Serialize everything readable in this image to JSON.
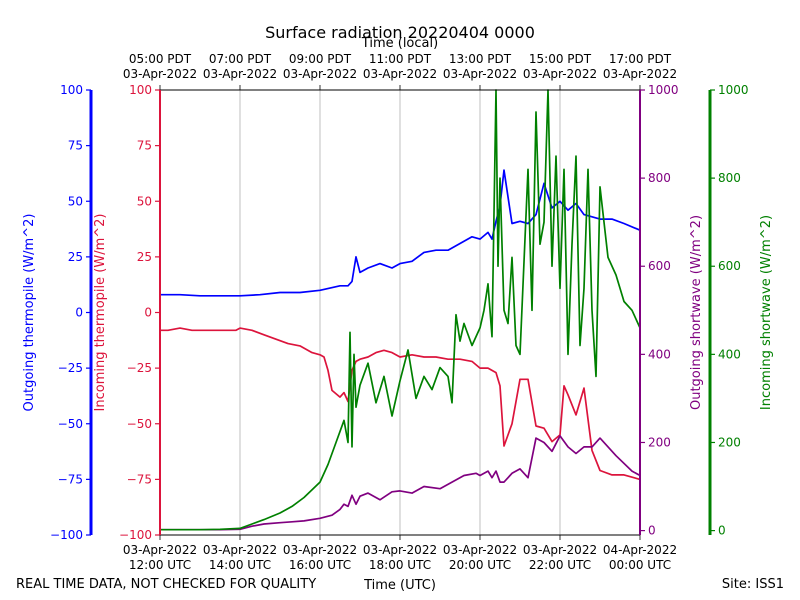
{
  "chart_data": {
    "type": "line",
    "title": "Surface radiation 20220404 0000",
    "top_axis_label": "Time (local)",
    "xlabel": "Time (UTC)",
    "footer_left": "REAL TIME DATA, NOT CHECKED FOR QUALITY",
    "footer_right": "Site: ISS1",
    "x_range_utc_hours": [
      12,
      24
    ],
    "grid": "vertical lines at bottom tick positions",
    "bottom_ticks": [
      {
        "hour": 12,
        "line1": "03-Apr-2022",
        "line2": "12:00 UTC"
      },
      {
        "hour": 14,
        "line1": "03-Apr-2022",
        "line2": "14:00 UTC"
      },
      {
        "hour": 16,
        "line1": "03-Apr-2022",
        "line2": "16:00 UTC"
      },
      {
        "hour": 18,
        "line1": "03-Apr-2022",
        "line2": "18:00 UTC"
      },
      {
        "hour": 20,
        "line1": "03-Apr-2022",
        "line2": "20:00 UTC"
      },
      {
        "hour": 22,
        "line1": "03-Apr-2022",
        "line2": "22:00 UTC"
      },
      {
        "hour": 24,
        "line1": "04-Apr-2022",
        "line2": "00:00 UTC"
      }
    ],
    "top_ticks": [
      {
        "hour": 12,
        "line1": "05:00 PDT",
        "line2": "03-Apr-2022"
      },
      {
        "hour": 14,
        "line1": "07:00 PDT",
        "line2": "03-Apr-2022"
      },
      {
        "hour": 16,
        "line1": "09:00 PDT",
        "line2": "03-Apr-2022"
      },
      {
        "hour": 18,
        "line1": "11:00 PDT",
        "line2": "03-Apr-2022"
      },
      {
        "hour": 20,
        "line1": "13:00 PDT",
        "line2": "03-Apr-2022"
      },
      {
        "hour": 22,
        "line1": "15:00 PDT",
        "line2": "03-Apr-2022"
      },
      {
        "hour": 24,
        "line1": "17:00 PDT",
        "line2": "03-Apr-2022"
      }
    ],
    "axes": [
      {
        "id": "outgoing_thermopile",
        "label": "Outgoing thermopile (W/m^2)",
        "color": "#0000ff",
        "side": "left-outer",
        "ylim": [
          -100,
          100
        ],
        "ticks": [
          -100,
          -75,
          -50,
          -25,
          0,
          25,
          50,
          75,
          100
        ]
      },
      {
        "id": "incoming_thermopile",
        "label": "Incoming thermopile (W/m^2)",
        "color": "#dc143c",
        "side": "left-inner",
        "ylim": [
          -100,
          100
        ],
        "ticks": [
          -100,
          -75,
          -50,
          -25,
          0,
          25,
          50,
          75,
          100
        ]
      },
      {
        "id": "outgoing_shortwave",
        "label": "Outgoing shortwave (W/m^2)",
        "color": "#800080",
        "side": "right-inner",
        "ylim": [
          -10,
          1000
        ],
        "ticks": [
          0,
          200,
          400,
          600,
          800,
          1000
        ]
      },
      {
        "id": "incoming_shortwave",
        "label": "Incoming shortwave (W/m^2)",
        "color": "#008000",
        "side": "right-outer",
        "ylim": [
          -10,
          1000
        ],
        "ticks": [
          0,
          200,
          400,
          600,
          800,
          1000
        ]
      }
    ],
    "series": [
      {
        "axis": "outgoing_thermopile",
        "color": "#0000ff",
        "x": [
          12.0,
          12.5,
          13.0,
          13.5,
          14.0,
          14.5,
          15.0,
          15.5,
          16.0,
          16.5,
          16.7,
          16.8,
          16.9,
          17.0,
          17.2,
          17.5,
          17.8,
          18.0,
          18.3,
          18.6,
          18.9,
          19.2,
          19.5,
          19.8,
          20.0,
          20.2,
          20.3,
          20.4,
          20.5,
          20.6,
          20.8,
          21.0,
          21.2,
          21.4,
          21.6,
          21.8,
          22.0,
          22.2,
          22.4,
          22.6,
          22.8,
          23.0,
          23.3,
          23.6,
          24.0
        ],
        "y": [
          8,
          8,
          7.5,
          7.5,
          7.5,
          8,
          9,
          9,
          10,
          12,
          12,
          14,
          25,
          18,
          20,
          22,
          20,
          22,
          23,
          27,
          28,
          28,
          31,
          34,
          33,
          36,
          33,
          41,
          48,
          64,
          40,
          41,
          40,
          44,
          58,
          47,
          50,
          46,
          49,
          44,
          43,
          42,
          42,
          40,
          37
        ]
      },
      {
        "axis": "incoming_thermopile",
        "color": "#dc143c",
        "x": [
          12.0,
          12.2,
          12.5,
          12.8,
          13.0,
          13.3,
          13.6,
          13.9,
          14.0,
          14.3,
          14.6,
          14.9,
          15.2,
          15.5,
          15.8,
          16.0,
          16.1,
          16.2,
          16.3,
          16.5,
          16.6,
          16.7,
          16.8,
          16.9,
          17.0,
          17.2,
          17.4,
          17.6,
          17.8,
          18.0,
          18.3,
          18.6,
          18.9,
          19.2,
          19.5,
          19.8,
          20.0,
          20.2,
          20.4,
          20.5,
          20.6,
          20.8,
          21.0,
          21.2,
          21.4,
          21.6,
          21.8,
          22.0,
          22.1,
          22.2,
          22.4,
          22.6,
          22.8,
          23.0,
          23.3,
          23.6,
          24.0
        ],
        "y": [
          -8,
          -8,
          -7,
          -8,
          -8,
          -8,
          -8,
          -8,
          -7,
          -8,
          -10,
          -12,
          -14,
          -15,
          -18,
          -19,
          -20,
          -26,
          -35,
          -38,
          -36,
          -40,
          -26,
          -22,
          -21,
          -20,
          -18,
          -17,
          -18,
          -20,
          -19,
          -20,
          -20,
          -21,
          -21,
          -22,
          -25,
          -25,
          -27,
          -33,
          -60,
          -50,
          -30,
          -30,
          -51,
          -52,
          -58,
          -55,
          -33,
          -37,
          -46,
          -34,
          -62,
          -71,
          -73,
          -73,
          -75
        ]
      },
      {
        "axis": "outgoing_shortwave",
        "color": "#800080",
        "x": [
          12.0,
          12.5,
          13.0,
          13.5,
          14.0,
          14.3,
          14.6,
          15.0,
          15.3,
          15.6,
          16.0,
          16.3,
          16.5,
          16.6,
          16.7,
          16.8,
          16.9,
          17.0,
          17.2,
          17.5,
          17.8,
          18.0,
          18.3,
          18.6,
          19.0,
          19.3,
          19.6,
          19.9,
          20.0,
          20.2,
          20.3,
          20.4,
          20.5,
          20.6,
          20.8,
          21.0,
          21.2,
          21.4,
          21.6,
          21.8,
          22.0,
          22.2,
          22.4,
          22.6,
          22.8,
          23.0,
          23.4,
          23.8,
          24.0
        ],
        "y": [
          2,
          2,
          2,
          2,
          3,
          10,
          15,
          18,
          20,
          22,
          28,
          35,
          48,
          60,
          55,
          80,
          60,
          78,
          85,
          70,
          88,
          90,
          85,
          100,
          95,
          110,
          125,
          130,
          125,
          135,
          120,
          135,
          110,
          110,
          130,
          140,
          120,
          210,
          200,
          180,
          215,
          190,
          175,
          190,
          190,
          210,
          170,
          135,
          125
        ]
      },
      {
        "axis": "incoming_shortwave",
        "color": "#008000",
        "x": [
          12.0,
          12.5,
          13.0,
          13.5,
          14.0,
          14.3,
          14.6,
          15.0,
          15.3,
          15.6,
          16.0,
          16.2,
          16.4,
          16.6,
          16.7,
          16.75,
          16.8,
          16.85,
          16.9,
          17.0,
          17.2,
          17.4,
          17.6,
          17.8,
          18.0,
          18.2,
          18.4,
          18.6,
          18.8,
          19.0,
          19.2,
          19.3,
          19.4,
          19.5,
          19.6,
          19.8,
          20.0,
          20.1,
          20.2,
          20.3,
          20.4,
          20.45,
          20.5,
          20.6,
          20.7,
          20.8,
          20.9,
          21.0,
          21.2,
          21.3,
          21.4,
          21.5,
          21.6,
          21.7,
          21.8,
          21.9,
          22.0,
          22.1,
          22.2,
          22.3,
          22.4,
          22.5,
          22.6,
          22.7,
          22.8,
          22.9,
          23.0,
          23.2,
          23.4,
          23.6,
          23.8,
          24.0
        ],
        "y": [
          2,
          2,
          2,
          3,
          5,
          15,
          25,
          40,
          55,
          75,
          110,
          150,
          200,
          250,
          200,
          450,
          190,
          400,
          280,
          330,
          380,
          290,
          350,
          260,
          340,
          410,
          300,
          350,
          320,
          370,
          350,
          290,
          490,
          430,
          470,
          420,
          460,
          500,
          560,
          440,
          1000,
          600,
          800,
          500,
          470,
          620,
          420,
          400,
          820,
          500,
          950,
          650,
          700,
          1000,
          600,
          850,
          550,
          820,
          400,
          650,
          850,
          420,
          550,
          820,
          500,
          350,
          780,
          620,
          580,
          520,
          500,
          460
        ]
      }
    ]
  }
}
